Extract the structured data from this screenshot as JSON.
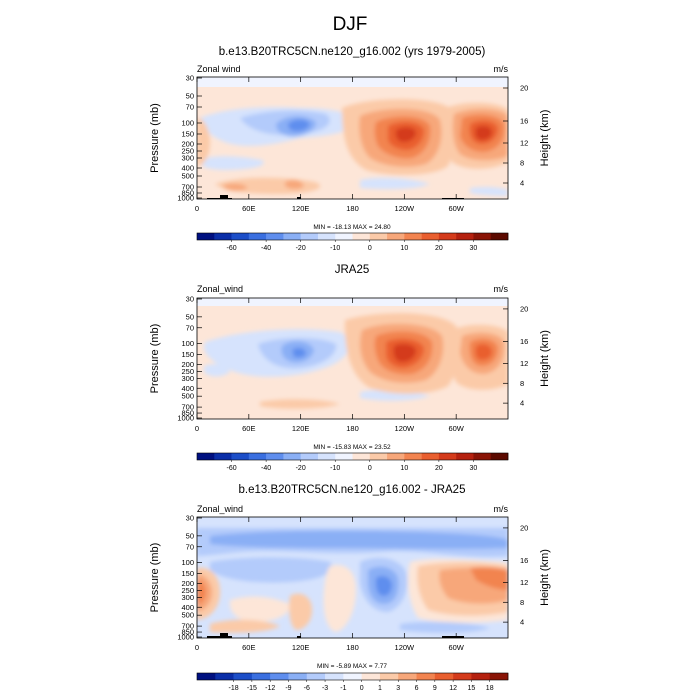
{
  "figure": {
    "title": "DJF"
  },
  "chart_data": [
    {
      "type": "heatmap",
      "title": "b.e13.B20TRC5CN.ne120_g16.002 (yrs 1979-2005)",
      "left_label": "Zonal wind",
      "right_label": "m/s",
      "ylabel": "Pressure (mb)",
      "ylabel_right": "Height (km)",
      "x_ticks": [
        "0",
        "60E",
        "120E",
        "180",
        "120W",
        "60W"
      ],
      "y_ticks": [
        "30",
        "50",
        "70",
        "100",
        "150",
        "200",
        "250",
        "300",
        "400",
        "500",
        "700",
        "850",
        "1000"
      ],
      "y_ticks_right": [
        "20",
        "16",
        "12",
        "8",
        "4"
      ],
      "stats": "MIN = -18.13  MAX =  24.80",
      "colorbar": {
        "labels": [
          "-60",
          "-40",
          "-20",
          "-10",
          "0",
          "10",
          "20",
          "30"
        ],
        "colors": [
          "#001080",
          "#0a2ea8",
          "#1c4ec8",
          "#3a6fe0",
          "#5f8eee",
          "#8aaff5",
          "#b3cbfb",
          "#d6e3fd",
          "#f0f4ff",
          "#fde6d8",
          "#fbcaa8",
          "#f7a77a",
          "#f28450",
          "#e95f2f",
          "#d43b1b",
          "#b5210f",
          "#8a1406",
          "#5c0a00"
        ]
      },
      "features": [
        {
          "kind": "neg_jet",
          "lon": 105,
          "p": 140,
          "value": -15
        },
        {
          "kind": "pos_jet",
          "lon": 250,
          "p": 150,
          "value": 24.8
        },
        {
          "kind": "pos_jet",
          "lon": 320,
          "p": 145,
          "value": 22
        }
      ],
      "ylim": [
        1000,
        30
      ],
      "xlim": [
        0,
        360
      ],
      "grid": false
    },
    {
      "type": "heatmap",
      "title": "JRA25",
      "left_label": "Zonal_wind",
      "right_label": "m/s",
      "ylabel": "Pressure (mb)",
      "ylabel_right": "Height (km)",
      "x_ticks": [
        "0",
        "60E",
        "120E",
        "180",
        "120W",
        "60W"
      ],
      "y_ticks": [
        "30",
        "50",
        "70",
        "100",
        "150",
        "200",
        "250",
        "300",
        "400",
        "500",
        "700",
        "850",
        "1000"
      ],
      "y_ticks_right": [
        "20",
        "16",
        "12",
        "8",
        "4"
      ],
      "stats": "MIN = -15.83  MAX =  23.52",
      "colorbar": {
        "labels": [
          "-60",
          "-40",
          "-20",
          "-10",
          "0",
          "10",
          "20",
          "30"
        ],
        "colors": [
          "#001080",
          "#0a2ea8",
          "#1c4ec8",
          "#3a6fe0",
          "#5f8eee",
          "#8aaff5",
          "#b3cbfb",
          "#d6e3fd",
          "#f0f4ff",
          "#fde6d8",
          "#fbcaa8",
          "#f7a77a",
          "#f28450",
          "#e95f2f",
          "#d43b1b",
          "#b5210f",
          "#8a1406",
          "#5c0a00"
        ]
      },
      "features": [
        {
          "kind": "neg_jet",
          "lon": 110,
          "p": 150,
          "value": -12
        },
        {
          "kind": "pos_jet",
          "lon": 235,
          "p": 160,
          "value": 23.5
        },
        {
          "kind": "pos_jet",
          "lon": 325,
          "p": 160,
          "value": 18
        }
      ],
      "ylim": [
        1000,
        30
      ],
      "xlim": [
        0,
        360
      ],
      "grid": false
    },
    {
      "type": "heatmap",
      "title": "b.e13.B20TRC5CN.ne120_g16.002 - JRA25",
      "left_label": "Zonal_wind",
      "right_label": "m/s",
      "ylabel": "Pressure (mb)",
      "ylabel_right": "Height (km)",
      "x_ticks": [
        "0",
        "60E",
        "120E",
        "180",
        "120W",
        "60W"
      ],
      "y_ticks": [
        "30",
        "50",
        "70",
        "100",
        "150",
        "200",
        "250",
        "300",
        "400",
        "500",
        "700",
        "850",
        "1000"
      ],
      "y_ticks_right": [
        "20",
        "16",
        "12",
        "8",
        "4"
      ],
      "stats": "MIN =  -5.89  MAX =   7.77",
      "colorbar": {
        "labels": [
          "-18",
          "-15",
          "-12",
          "-9",
          "-6",
          "-3",
          "-1",
          "0",
          "1",
          "3",
          "6",
          "9",
          "12",
          "15",
          "18"
        ],
        "colors": [
          "#001080",
          "#0a2ea8",
          "#1c4ec8",
          "#3a6fe0",
          "#5f8eee",
          "#8aaff5",
          "#b3cbfb",
          "#d6e3fd",
          "#f0f4ff",
          "#fde6d8",
          "#fbcaa8",
          "#f7a77a",
          "#f28450",
          "#e95f2f",
          "#d43b1b",
          "#b5210f",
          "#8a1406"
        ]
      },
      "features": [
        {
          "kind": "neg_band",
          "p": 50,
          "value": -4
        },
        {
          "kind": "neg_jet",
          "lon": 190,
          "p": 220,
          "value": -5.9
        },
        {
          "kind": "pos_jet",
          "lon": 5,
          "p": 220,
          "value": 6
        },
        {
          "kind": "pos_jet",
          "lon": 320,
          "p": 180,
          "value": 7.8
        }
      ],
      "ylim": [
        1000,
        30
      ],
      "xlim": [
        0,
        360
      ],
      "grid": false
    }
  ]
}
